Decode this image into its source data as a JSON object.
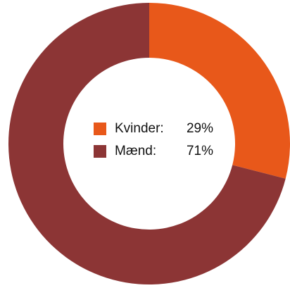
{
  "chart_data": {
    "type": "donut",
    "categories": [
      "Kvinder:",
      "Mænd:"
    ],
    "values": [
      29,
      71
    ],
    "value_labels": [
      "29%",
      "71%"
    ],
    "colors": [
      "#e8581a",
      "#8c3535"
    ]
  }
}
